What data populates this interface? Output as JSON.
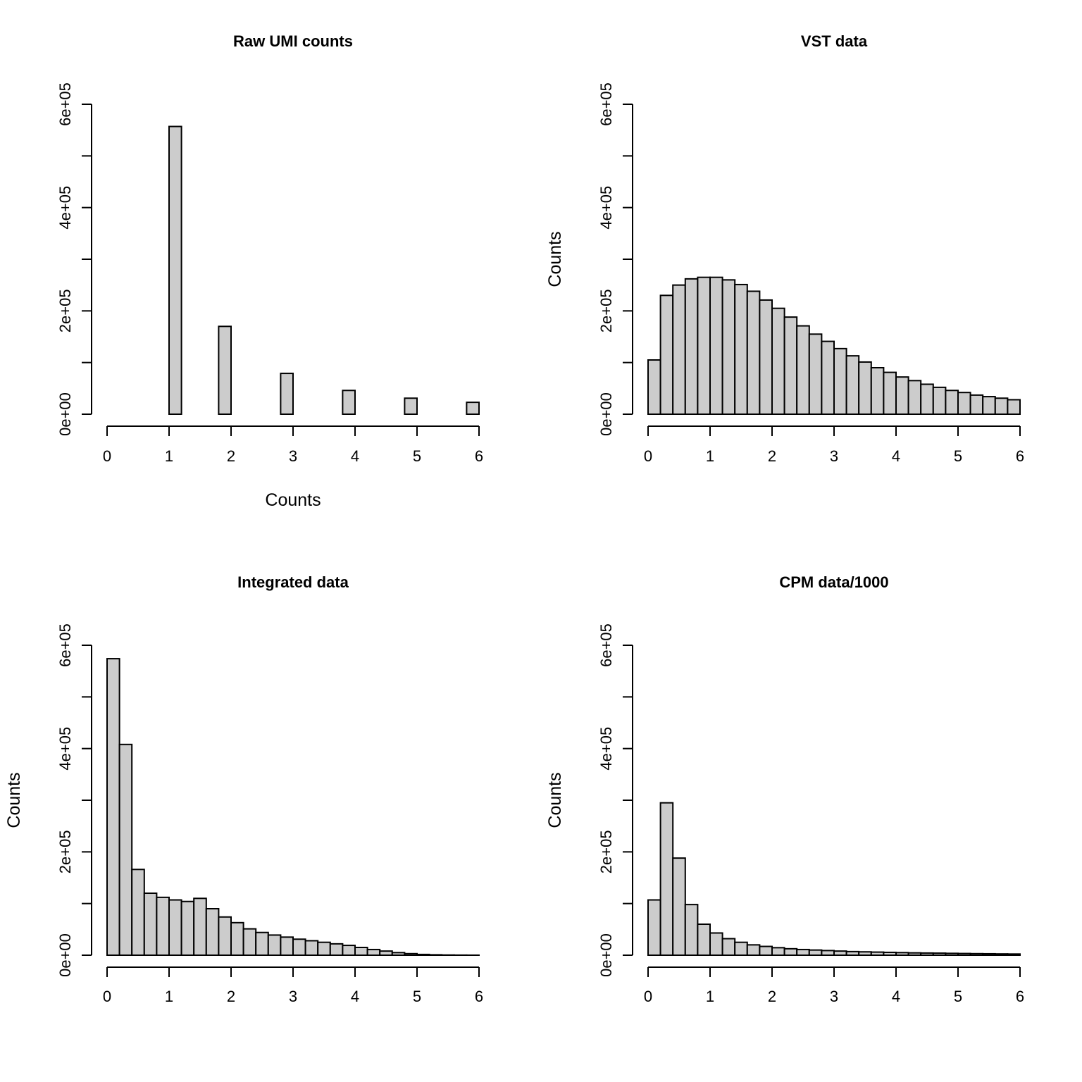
{
  "chart_data": [
    {
      "type": "bar",
      "title": "Raw UMI counts",
      "xlabel": "Counts",
      "ylabel": "",
      "xlim": [
        0,
        6
      ],
      "ylim": [
        0,
        600000
      ],
      "x_ticks": [
        "0",
        "1",
        "2",
        "3",
        "4",
        "5",
        "6"
      ],
      "y_ticks": [
        "0e+00",
        "2e+05",
        "4e+05",
        "6e+05"
      ],
      "bins": [
        {
          "start": 1.0,
          "end": 1.2,
          "value": 557000
        },
        {
          "start": 1.8,
          "end": 2.0,
          "value": 170000
        },
        {
          "start": 2.8,
          "end": 3.0,
          "value": 79000
        },
        {
          "start": 3.8,
          "end": 4.0,
          "value": 46000
        },
        {
          "start": 4.8,
          "end": 5.0,
          "value": 31000
        },
        {
          "start": 5.8,
          "end": 6.0,
          "value": 23000
        }
      ]
    },
    {
      "type": "bar",
      "title": "VST data",
      "xlabel": "",
      "ylabel": "Counts",
      "xlim": [
        0,
        6
      ],
      "ylim": [
        0,
        600000
      ],
      "x_ticks": [
        "0",
        "1",
        "2",
        "3",
        "4",
        "5",
        "6"
      ],
      "y_ticks": [
        "0e+00",
        "2e+05",
        "4e+05",
        "6e+05"
      ],
      "bin_width": 0.2,
      "values": [
        105000,
        230000,
        250000,
        262000,
        265000,
        265000,
        260000,
        251000,
        238000,
        221000,
        205000,
        188000,
        171000,
        155000,
        141000,
        127000,
        113000,
        101000,
        90000,
        81000,
        72000,
        65000,
        58000,
        52000,
        46000,
        42000,
        37000,
        34000,
        31000,
        28000
      ]
    },
    {
      "type": "bar",
      "title": "Integrated data",
      "xlabel": "",
      "ylabel": "Counts",
      "xlim": [
        0,
        6
      ],
      "ylim": [
        0,
        600000
      ],
      "x_ticks": [
        "0",
        "1",
        "2",
        "3",
        "4",
        "5",
        "6"
      ],
      "y_ticks": [
        "0e+00",
        "2e+05",
        "4e+05",
        "6e+05"
      ],
      "bin_width": 0.2,
      "values": [
        574000,
        408000,
        166000,
        120000,
        112000,
        107000,
        104000,
        110000,
        90000,
        74000,
        63000,
        51000,
        44000,
        39000,
        35000,
        31000,
        28000,
        25000,
        22000,
        19000,
        15000,
        11000,
        8000,
        5000,
        3000,
        1500,
        800,
        400,
        200,
        100
      ]
    },
    {
      "type": "bar",
      "title": "CPM data/1000",
      "xlabel": "",
      "ylabel": "Counts",
      "xlim": [
        0,
        6
      ],
      "ylim": [
        0,
        600000
      ],
      "x_ticks": [
        "0",
        "1",
        "2",
        "3",
        "4",
        "5",
        "6"
      ],
      "y_ticks": [
        "0e+00",
        "2e+05",
        "4e+05",
        "6e+05"
      ],
      "bin_width": 0.2,
      "values": [
        107000,
        295000,
        188000,
        98000,
        60000,
        43000,
        32000,
        25000,
        20000,
        17000,
        14500,
        12500,
        11000,
        10000,
        9000,
        8000,
        7000,
        6500,
        6000,
        5500,
        5000,
        4500,
        4200,
        4000,
        3600,
        3300,
        3000,
        2800,
        2500,
        2300
      ]
    }
  ]
}
